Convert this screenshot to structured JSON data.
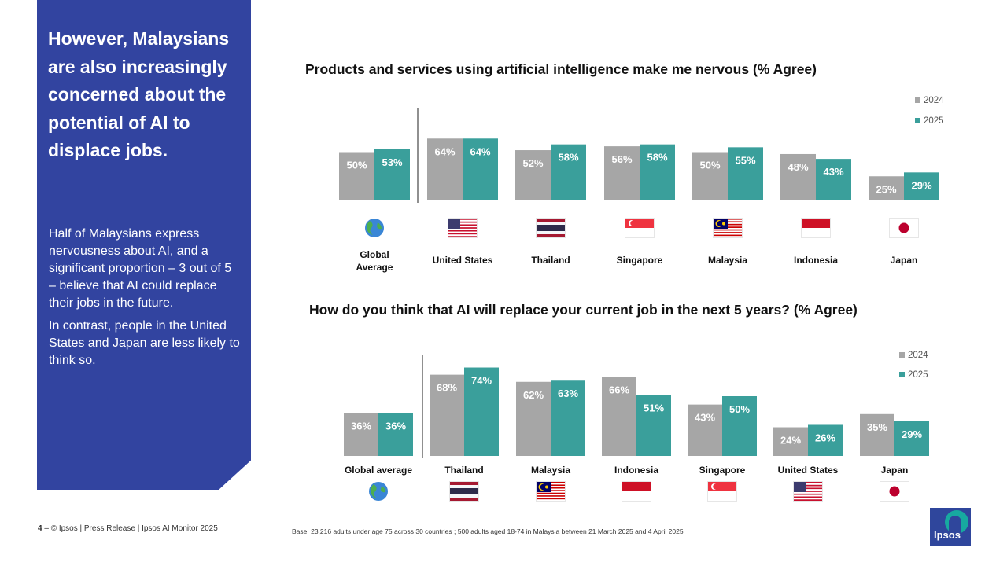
{
  "panel": {
    "headline": "However, Malaysians are also increasingly concerned about the potential of AI to displace jobs.",
    "paragraph1": "Half of Malaysians express nervousness about AI, and a significant proportion – 3 out of 5 – believe that AI could replace their jobs in the future.",
    "paragraph2": "In contrast, people in the United States and Japan are less likely to think so."
  },
  "footer": {
    "page_number": "4",
    "page_separator": " – ",
    "copyright": "© Ipsos | Press Release | Ipsos AI Monitor 2025",
    "base_note": "Base: 23,216 adults under age 75 across 30 countries ; 500 adults aged 18-74 in Malaysia between 21 March 2025 and 4 April 2025"
  },
  "logo": {
    "text": "Ipsos"
  },
  "colors": {
    "panel": "#3244a0",
    "series_2024": "#a6a6a6",
    "series_2025": "#3a9f9b",
    "logo": "#2f469c"
  },
  "chart_data": [
    {
      "type": "bar",
      "title": "Products and services using artificial intelligence make me nervous (% Agree)",
      "categories": [
        "Global average",
        "United States",
        "Thailand",
        "Singapore",
        "Malaysia",
        "Indonesia",
        "Japan"
      ],
      "category_icons": [
        "globe-icon",
        "flag-us-icon",
        "flag-thailand-icon",
        "flag-singapore-icon",
        "flag-malaysia-icon",
        "flag-indonesia-icon",
        "flag-japan-icon"
      ],
      "series": [
        {
          "name": "2024",
          "values": [
            50,
            64,
            52,
            56,
            50,
            48,
            25
          ],
          "labels": [
            "50%",
            "64%",
            "52%",
            "56%",
            "50%",
            "48%",
            "25%"
          ]
        },
        {
          "name": "2025",
          "values": [
            53,
            64,
            58,
            58,
            55,
            43,
            29
          ],
          "labels": [
            "53%",
            "64%",
            "58%",
            "58%",
            "55%",
            "43%",
            "29%"
          ]
        }
      ],
      "ylim": [
        0,
        100
      ],
      "legend": "top-right",
      "grid": false
    },
    {
      "type": "bar",
      "title": "How do you think that AI will replace your current job in the next 5 years? (% Agree)",
      "categories": [
        "Global average",
        "Thailand",
        "Malaysia",
        "Indonesia",
        "Singapore",
        "United States",
        "Japan"
      ],
      "category_icons": [
        "globe-icon",
        "flag-thailand-icon",
        "flag-malaysia-icon",
        "flag-indonesia-icon",
        "flag-singapore-icon",
        "flag-us-icon",
        "flag-japan-icon"
      ],
      "series": [
        {
          "name": "2024",
          "values": [
            36,
            68,
            62,
            66,
            43,
            24,
            35
          ],
          "labels": [
            "36%",
            "68%",
            "62%",
            "66%",
            "43%",
            "24%",
            "35%"
          ]
        },
        {
          "name": "2025",
          "values": [
            36,
            74,
            63,
            51,
            50,
            26,
            29
          ],
          "labels": [
            "36%",
            "74%",
            "63%",
            "51%",
            "50%",
            "26%",
            "29%"
          ]
        }
      ],
      "ylim": [
        0,
        100
      ],
      "legend": "top-right",
      "grid": false
    }
  ]
}
